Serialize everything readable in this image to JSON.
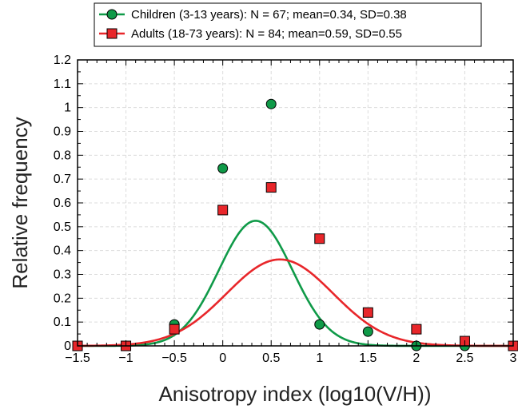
{
  "chart_data": {
    "type": "line",
    "xlabel": "Anisotropy index (log10(V/H))",
    "ylabel": "Relative frequency",
    "xlim": [
      -1.5,
      3
    ],
    "ylim": [
      0,
      1.2
    ],
    "x_ticks": [
      -1.5,
      -1,
      -0.5,
      0,
      0.5,
      1,
      1.5,
      2,
      2.5,
      3
    ],
    "x_tick_labels": [
      "−1.5",
      "−1",
      "−0.5",
      "0",
      "0.5",
      "1",
      "1.5",
      "2",
      "2.5",
      "3"
    ],
    "y_ticks": [
      0,
      0.1,
      0.2,
      0.3,
      0.4,
      0.5,
      0.6,
      0.7,
      0.8,
      0.9,
      1,
      1.1,
      1.2
    ],
    "y_tick_labels": [
      "0",
      "0.1",
      "0.2",
      "0.3",
      "0.4",
      "0.5",
      "0.6",
      "0.7",
      "0.8",
      "0.9",
      "1",
      "1.1",
      "1.2"
    ],
    "grid": true,
    "legend_position": "top",
    "series": [
      {
        "name": "Children (3-13 years): N = 67; mean=0.34, SD=0.38",
        "color": "#0f9a48",
        "marker": "circle",
        "x": [
          -0.5,
          0,
          0.5,
          1,
          1.5,
          2,
          2.5
        ],
        "y": [
          0.09,
          0.745,
          1.015,
          0.09,
          0.06,
          0.0,
          0.0
        ],
        "fit": {
          "type": "gaussian",
          "mean": 0.34,
          "sd": 0.38
        }
      },
      {
        "name": "Adults (18-73 years): N = 84; mean=0.59, SD=0.55",
        "color": "#e8262a",
        "marker": "square",
        "x": [
          -1.5,
          -1,
          -0.5,
          0,
          0.5,
          1,
          1.5,
          2,
          2.5,
          3
        ],
        "y": [
          0.0,
          0.0,
          0.07,
          0.57,
          0.665,
          0.45,
          0.14,
          0.07,
          0.02,
          0.0
        ],
        "fit": {
          "type": "gaussian",
          "mean": 0.59,
          "sd": 0.55
        }
      }
    ]
  }
}
